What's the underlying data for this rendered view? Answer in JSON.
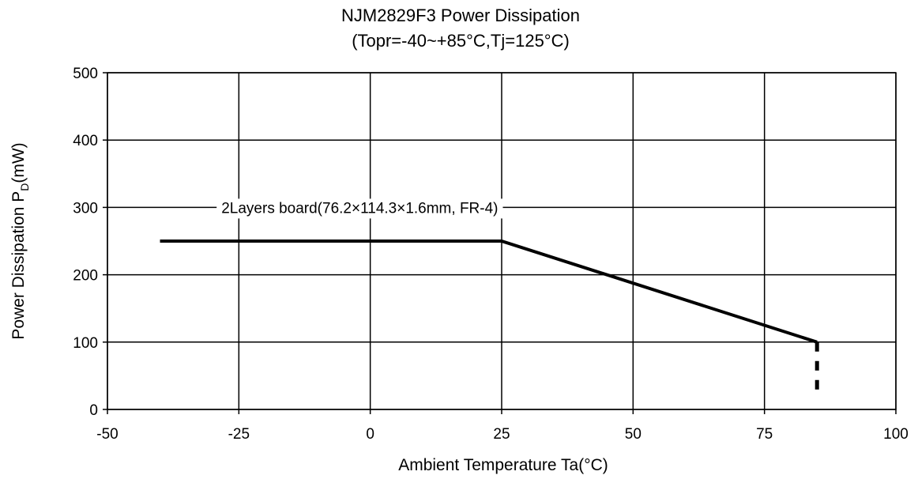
{
  "chart_data": {
    "type": "line",
    "title": "NJM2829F3 Power Dissipation",
    "subtitle": "(Topr=-40~+85°C,Tj=125°C)",
    "xlabel": "Ambient Temperature Ta(°C)",
    "ylabel": {
      "prefix": "Power Dissipation P",
      "subscript": "D",
      "suffix": "(mW)"
    },
    "xlim": [
      -50,
      100
    ],
    "ylim": [
      0,
      500
    ],
    "x_ticks": [
      -50,
      -25,
      0,
      25,
      50,
      75,
      100
    ],
    "y_ticks": [
      0,
      100,
      200,
      300,
      400,
      500
    ],
    "grid": true,
    "series": [
      {
        "name": "2Layers board(76.2×114.3×1.6mm, FR-4)",
        "color": "#000000",
        "x": [
          -40,
          25,
          85
        ],
        "y": [
          250,
          250,
          100
        ]
      }
    ],
    "operating_limit": {
      "x": 85,
      "y_from": 100,
      "y_to": 0,
      "style": "dashed"
    }
  }
}
